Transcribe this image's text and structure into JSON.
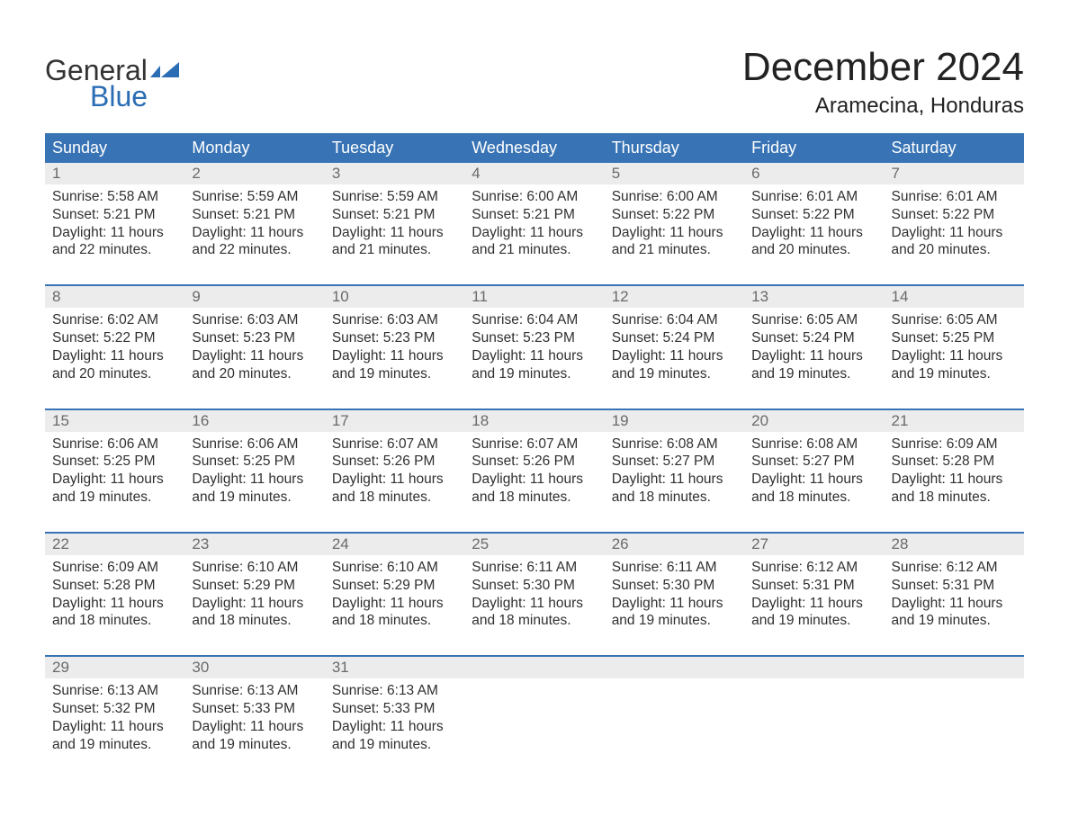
{
  "logo": {
    "word1": "General",
    "word2": "Blue",
    "shape_color": "#2a6db4",
    "word1_color": "#333333",
    "word2_color": "#2a6db4"
  },
  "title": "December 2024",
  "location": "Aramecina, Honduras",
  "colors": {
    "header_bg": "#3874b5",
    "header_text": "#ffffff",
    "daynum_bg": "#ececec",
    "daynum_text": "#6a6a6a",
    "divider": "#3874b5",
    "body_text": "#303030",
    "background": "#ffffff"
  },
  "typography": {
    "title_fontsize": 44,
    "location_fontsize": 24,
    "header_fontsize": 18,
    "daynum_fontsize": 17,
    "cell_fontsize": 15.5,
    "logo_fontsize": 32
  },
  "day_headers": [
    "Sunday",
    "Monday",
    "Tuesday",
    "Wednesday",
    "Thursday",
    "Friday",
    "Saturday"
  ],
  "weeks": [
    [
      {
        "num": "1",
        "sunrise": "Sunrise: 5:58 AM",
        "sunset": "Sunset: 5:21 PM",
        "dl1": "Daylight: 11 hours",
        "dl2": "and 22 minutes."
      },
      {
        "num": "2",
        "sunrise": "Sunrise: 5:59 AM",
        "sunset": "Sunset: 5:21 PM",
        "dl1": "Daylight: 11 hours",
        "dl2": "and 22 minutes."
      },
      {
        "num": "3",
        "sunrise": "Sunrise: 5:59 AM",
        "sunset": "Sunset: 5:21 PM",
        "dl1": "Daylight: 11 hours",
        "dl2": "and 21 minutes."
      },
      {
        "num": "4",
        "sunrise": "Sunrise: 6:00 AM",
        "sunset": "Sunset: 5:21 PM",
        "dl1": "Daylight: 11 hours",
        "dl2": "and 21 minutes."
      },
      {
        "num": "5",
        "sunrise": "Sunrise: 6:00 AM",
        "sunset": "Sunset: 5:22 PM",
        "dl1": "Daylight: 11 hours",
        "dl2": "and 21 minutes."
      },
      {
        "num": "6",
        "sunrise": "Sunrise: 6:01 AM",
        "sunset": "Sunset: 5:22 PM",
        "dl1": "Daylight: 11 hours",
        "dl2": "and 20 minutes."
      },
      {
        "num": "7",
        "sunrise": "Sunrise: 6:01 AM",
        "sunset": "Sunset: 5:22 PM",
        "dl1": "Daylight: 11 hours",
        "dl2": "and 20 minutes."
      }
    ],
    [
      {
        "num": "8",
        "sunrise": "Sunrise: 6:02 AM",
        "sunset": "Sunset: 5:22 PM",
        "dl1": "Daylight: 11 hours",
        "dl2": "and 20 minutes."
      },
      {
        "num": "9",
        "sunrise": "Sunrise: 6:03 AM",
        "sunset": "Sunset: 5:23 PM",
        "dl1": "Daylight: 11 hours",
        "dl2": "and 20 minutes."
      },
      {
        "num": "10",
        "sunrise": "Sunrise: 6:03 AM",
        "sunset": "Sunset: 5:23 PM",
        "dl1": "Daylight: 11 hours",
        "dl2": "and 19 minutes."
      },
      {
        "num": "11",
        "sunrise": "Sunrise: 6:04 AM",
        "sunset": "Sunset: 5:23 PM",
        "dl1": "Daylight: 11 hours",
        "dl2": "and 19 minutes."
      },
      {
        "num": "12",
        "sunrise": "Sunrise: 6:04 AM",
        "sunset": "Sunset: 5:24 PM",
        "dl1": "Daylight: 11 hours",
        "dl2": "and 19 minutes."
      },
      {
        "num": "13",
        "sunrise": "Sunrise: 6:05 AM",
        "sunset": "Sunset: 5:24 PM",
        "dl1": "Daylight: 11 hours",
        "dl2": "and 19 minutes."
      },
      {
        "num": "14",
        "sunrise": "Sunrise: 6:05 AM",
        "sunset": "Sunset: 5:25 PM",
        "dl1": "Daylight: 11 hours",
        "dl2": "and 19 minutes."
      }
    ],
    [
      {
        "num": "15",
        "sunrise": "Sunrise: 6:06 AM",
        "sunset": "Sunset: 5:25 PM",
        "dl1": "Daylight: 11 hours",
        "dl2": "and 19 minutes."
      },
      {
        "num": "16",
        "sunrise": "Sunrise: 6:06 AM",
        "sunset": "Sunset: 5:25 PM",
        "dl1": "Daylight: 11 hours",
        "dl2": "and 19 minutes."
      },
      {
        "num": "17",
        "sunrise": "Sunrise: 6:07 AM",
        "sunset": "Sunset: 5:26 PM",
        "dl1": "Daylight: 11 hours",
        "dl2": "and 18 minutes."
      },
      {
        "num": "18",
        "sunrise": "Sunrise: 6:07 AM",
        "sunset": "Sunset: 5:26 PM",
        "dl1": "Daylight: 11 hours",
        "dl2": "and 18 minutes."
      },
      {
        "num": "19",
        "sunrise": "Sunrise: 6:08 AM",
        "sunset": "Sunset: 5:27 PM",
        "dl1": "Daylight: 11 hours",
        "dl2": "and 18 minutes."
      },
      {
        "num": "20",
        "sunrise": "Sunrise: 6:08 AM",
        "sunset": "Sunset: 5:27 PM",
        "dl1": "Daylight: 11 hours",
        "dl2": "and 18 minutes."
      },
      {
        "num": "21",
        "sunrise": "Sunrise: 6:09 AM",
        "sunset": "Sunset: 5:28 PM",
        "dl1": "Daylight: 11 hours",
        "dl2": "and 18 minutes."
      }
    ],
    [
      {
        "num": "22",
        "sunrise": "Sunrise: 6:09 AM",
        "sunset": "Sunset: 5:28 PM",
        "dl1": "Daylight: 11 hours",
        "dl2": "and 18 minutes."
      },
      {
        "num": "23",
        "sunrise": "Sunrise: 6:10 AM",
        "sunset": "Sunset: 5:29 PM",
        "dl1": "Daylight: 11 hours",
        "dl2": "and 18 minutes."
      },
      {
        "num": "24",
        "sunrise": "Sunrise: 6:10 AM",
        "sunset": "Sunset: 5:29 PM",
        "dl1": "Daylight: 11 hours",
        "dl2": "and 18 minutes."
      },
      {
        "num": "25",
        "sunrise": "Sunrise: 6:11 AM",
        "sunset": "Sunset: 5:30 PM",
        "dl1": "Daylight: 11 hours",
        "dl2": "and 18 minutes."
      },
      {
        "num": "26",
        "sunrise": "Sunrise: 6:11 AM",
        "sunset": "Sunset: 5:30 PM",
        "dl1": "Daylight: 11 hours",
        "dl2": "and 19 minutes."
      },
      {
        "num": "27",
        "sunrise": "Sunrise: 6:12 AM",
        "sunset": "Sunset: 5:31 PM",
        "dl1": "Daylight: 11 hours",
        "dl2": "and 19 minutes."
      },
      {
        "num": "28",
        "sunrise": "Sunrise: 6:12 AM",
        "sunset": "Sunset: 5:31 PM",
        "dl1": "Daylight: 11 hours",
        "dl2": "and 19 minutes."
      }
    ],
    [
      {
        "num": "29",
        "sunrise": "Sunrise: 6:13 AM",
        "sunset": "Sunset: 5:32 PM",
        "dl1": "Daylight: 11 hours",
        "dl2": "and 19 minutes."
      },
      {
        "num": "30",
        "sunrise": "Sunrise: 6:13 AM",
        "sunset": "Sunset: 5:33 PM",
        "dl1": "Daylight: 11 hours",
        "dl2": "and 19 minutes."
      },
      {
        "num": "31",
        "sunrise": "Sunrise: 6:13 AM",
        "sunset": "Sunset: 5:33 PM",
        "dl1": "Daylight: 11 hours",
        "dl2": "and 19 minutes."
      },
      {
        "num": "",
        "sunrise": "",
        "sunset": "",
        "dl1": "",
        "dl2": ""
      },
      {
        "num": "",
        "sunrise": "",
        "sunset": "",
        "dl1": "",
        "dl2": ""
      },
      {
        "num": "",
        "sunrise": "",
        "sunset": "",
        "dl1": "",
        "dl2": ""
      },
      {
        "num": "",
        "sunrise": "",
        "sunset": "",
        "dl1": "",
        "dl2": ""
      }
    ]
  ]
}
